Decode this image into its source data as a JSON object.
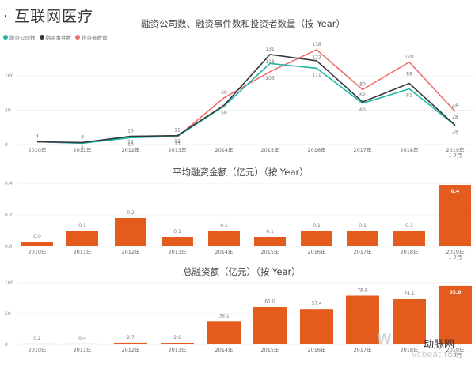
{
  "page": {
    "title": "· 互联网医疗"
  },
  "colors": {
    "companies": "#1fb5a6",
    "events": "#333a3f",
    "investors": "#ef6f6c",
    "bar": "#e35b1d",
    "grid": "#ececec"
  },
  "legend": [
    {
      "label": "融资公司数",
      "color": "#1fb5a6"
    },
    {
      "label": "融资事件数",
      "color": "#333a3f"
    },
    {
      "label": "投资者数量",
      "color": "#ef6f6c"
    }
  ],
  "watermark": {
    "brand": "动脉网",
    "site": "vcbeat.top"
  },
  "chart_data": [
    {
      "type": "line",
      "title": "融资公司数、融资事件数和投资者数量（按 Year）",
      "xlabel": "",
      "ylabel": "",
      "categories": [
        "2010年",
        "2011年",
        "2012年",
        "2013年",
        "2014年",
        "2015年",
        "2016年",
        "2017年",
        "2018年",
        "2019年 1-7月"
      ],
      "y_ticks": [
        "0",
        "50",
        "100"
      ],
      "ylim": [
        0,
        150
      ],
      "grid": true,
      "legend_position": "top-left",
      "series": [
        {
          "name": "融资公司数",
          "values": [
            4,
            2,
            10,
            12,
            56,
            118,
            111,
            60,
            81,
            28
          ]
        },
        {
          "name": "融资事件数",
          "values": [
            4,
            3,
            12,
            13,
            57,
            131,
            122,
            62,
            89,
            28
          ]
        },
        {
          "name": "投资者数量",
          "values": [
            4,
            2,
            12,
            11,
            68,
            106,
            138,
            80,
            120,
            48
          ]
        }
      ],
      "labels": [
        [
          "4",
          "3",
          "10",
          "11",
          "68",
          "131",
          "138",
          "80",
          "120",
          "48"
        ],
        [
          "",
          "2",
          "12",
          "12",
          "57",
          "118",
          "122",
          "62",
          "89",
          "28"
        ],
        [
          "",
          "2",
          "10",
          "13",
          "56",
          "106",
          "111",
          "60",
          "81",
          "28"
        ]
      ]
    },
    {
      "type": "bar",
      "title": "平均融资金额（亿元）（按 Year）",
      "categories": [
        "2010年",
        "2011年",
        "2012年",
        "2013年",
        "2014年",
        "2015年",
        "2016年",
        "2017年",
        "2018年",
        "2019年 1-7月"
      ],
      "values": [
        0.03,
        0.1,
        0.18,
        0.06,
        0.1,
        0.06,
        0.1,
        0.1,
        0.1,
        0.39
      ],
      "labels": [
        "0.0",
        "0.1",
        "0.2",
        "0.1",
        "0.1",
        "0.1",
        "0.1",
        "0.1",
        "0.1",
        "0.4"
      ],
      "y_ticks": [
        "0.0",
        "0.2",
        "0.4"
      ],
      "ylim": [
        0,
        0.4
      ],
      "grid": true
    },
    {
      "type": "bar",
      "title": "总融资额（亿元）（按 Year）",
      "categories": [
        "2010年",
        "2011年",
        "2012年",
        "2013年",
        "2014年",
        "2015年",
        "2016年",
        "2017年",
        "2018年",
        "2019年 1-7月"
      ],
      "values": [
        0.2,
        0.4,
        2.7,
        2.6,
        38.1,
        61.0,
        57.4,
        78.8,
        74.1,
        95.0
      ],
      "labels": [
        "0.2",
        "0.4",
        "2.7",
        "2.6",
        "38.1",
        "61.0",
        "57.4",
        "78.8",
        "74.1",
        "95.0"
      ],
      "y_ticks": [
        "0",
        "50",
        "100"
      ],
      "ylim": [
        0,
        100
      ],
      "grid": true
    }
  ]
}
